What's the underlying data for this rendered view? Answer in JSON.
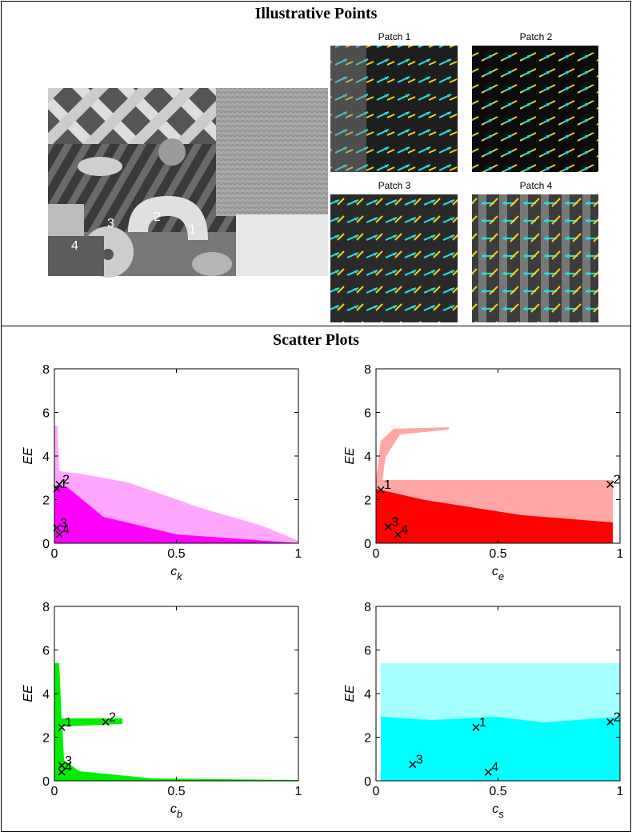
{
  "sections": {
    "top_title": "Illustrative Points",
    "bottom_title": "Scatter Plots"
  },
  "photo": {
    "point_labels": [
      "1",
      "2",
      "3",
      "4"
    ]
  },
  "patches": [
    "Patch 1",
    "Patch 2",
    "Patch 3",
    "Patch 4"
  ],
  "chart_data": [
    {
      "type": "scatter",
      "ylabel": "EE",
      "xlabel": "c",
      "xlabel_sub": "k",
      "color": "#ff00ff",
      "xlim": [
        0,
        1
      ],
      "ylim": [
        0,
        8
      ],
      "xticks": [
        0,
        0.5,
        1
      ],
      "yticks": [
        0,
        2,
        4,
        6,
        8
      ],
      "points": {
        "labels": [
          "1",
          "2",
          "3",
          "4"
        ],
        "x": [
          0.01,
          0.02,
          0.01,
          0.02
        ],
        "y": [
          2.5,
          2.7,
          0.7,
          0.4
        ]
      }
    },
    {
      "type": "scatter",
      "ylabel": "EE",
      "xlabel": "c",
      "xlabel_sub": "e",
      "color": "#ff0000",
      "xlim": [
        0,
        1
      ],
      "ylim": [
        0,
        8
      ],
      "xticks": [
        0,
        0.5,
        1
      ],
      "yticks": [
        0,
        2,
        4,
        6,
        8
      ],
      "points": {
        "labels": [
          "1",
          "2",
          "3",
          "4"
        ],
        "x": [
          0.02,
          0.96,
          0.05,
          0.09
        ],
        "y": [
          2.45,
          2.7,
          0.75,
          0.4
        ]
      }
    },
    {
      "type": "scatter",
      "ylabel": "EE",
      "xlabel": "c",
      "xlabel_sub": "b",
      "color": "#00ee00",
      "xlim": [
        0,
        1
      ],
      "ylim": [
        0,
        8
      ],
      "xticks": [
        0,
        0.5,
        1
      ],
      "yticks": [
        0,
        2,
        4,
        6,
        8
      ],
      "points": {
        "labels": [
          "1",
          "2",
          "3",
          "4"
        ],
        "x": [
          0.03,
          0.21,
          0.03,
          0.03
        ],
        "y": [
          2.45,
          2.7,
          0.7,
          0.4
        ]
      }
    },
    {
      "type": "scatter",
      "ylabel": "EE",
      "xlabel": "c",
      "xlabel_sub": "s",
      "color": "#00ffff",
      "xlim": [
        0,
        1
      ],
      "ylim": [
        0,
        8
      ],
      "xticks": [
        0,
        0.5,
        1
      ],
      "yticks": [
        0,
        2,
        4,
        6,
        8
      ],
      "points": {
        "labels": [
          "1",
          "2",
          "3",
          "4"
        ],
        "x": [
          0.41,
          0.96,
          0.15,
          0.46
        ],
        "y": [
          2.45,
          2.7,
          0.75,
          0.4
        ]
      }
    }
  ]
}
